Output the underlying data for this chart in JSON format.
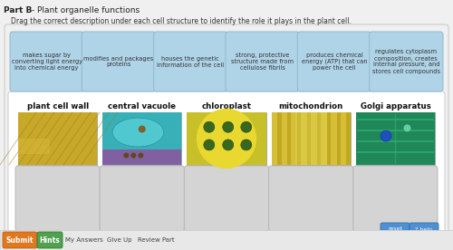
{
  "title_bold": "Part B",
  "title_rest": " - Plant organelle functions",
  "subtitle": "Drag the correct description under each cell structure to identify the role it plays in the plant cell.",
  "description_cards": [
    "makes sugar by\nconverting light energy\ninto chemical energy",
    "modifies and packages\nproteins",
    "houses the genetic\ninformation of the cell",
    "strong, protective\nstructure made from\ncellulose fibrils",
    "produces chemical\nenergy (ATP) that can\npower the cell",
    "regulates cytoplasm\ncomposition, creates\ninternal pressure, and\nstores cell compounds"
  ],
  "organelles": [
    "plant cell wall",
    "central vacuole",
    "chloroplast",
    "mitochondrion",
    "Golgi apparatus"
  ],
  "card_facecolor": "#afd4e8",
  "card_edgecolor": "#90b8cc",
  "outer_panel_face": "#f0f0f0",
  "outer_panel_edge": "#cccccc",
  "inner_panel_face": "#ffffff",
  "inner_panel_edge": "#cccccc",
  "drop_box_face": "#d4d4d4",
  "drop_box_edge": "#b8b8b8",
  "bg_color": "#f0f0f0",
  "title_color": "#222222",
  "subtitle_color": "#333333",
  "organelle_label_color": "#111111",
  "bottom_bar_face": "#e8e8e8",
  "bottom_bar_edge": "#d0d0d0",
  "submit_btn_face": "#e07820",
  "submit_btn_edge": "#c06010",
  "hints_btn_face": "#50a050",
  "hints_btn_edge": "#308030",
  "footer_links": [
    "My Answers",
    "Give Up",
    "Review Part"
  ],
  "reset_btn_face": "#5090d0",
  "reset_btn_edge": "#3070b0",
  "help_btn_face": "#5090d0",
  "help_btn_edge": "#3070b0",
  "img_colors": [
    "#c8a030",
    "#3ab0b8",
    "#c0c028",
    "#c8b828",
    "#28a868"
  ]
}
